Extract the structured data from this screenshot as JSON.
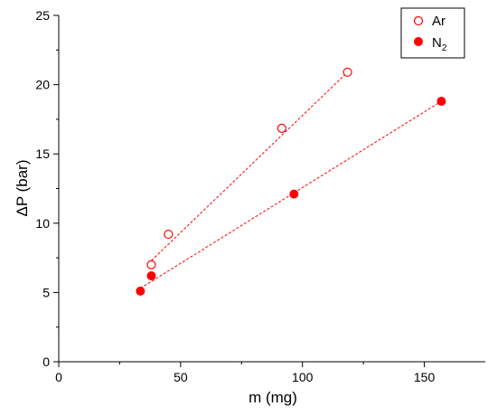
{
  "chart_data": {
    "type": "scatter",
    "xlabel": "m (mg)",
    "ylabel": "ΔP (bar)",
    "xlim": [
      0,
      175
    ],
    "ylim": [
      0,
      25
    ],
    "x_ticks": [
      0,
      50,
      100,
      150
    ],
    "y_ticks": [
      0,
      5,
      10,
      15,
      20,
      25
    ],
    "grid": false,
    "legend_position": "top-right",
    "series": [
      {
        "name": "Ar",
        "marker": "open-circle",
        "color": "#ff0000",
        "x": [
          38,
          45,
          91.5,
          118.5
        ],
        "y": [
          7.0,
          9.2,
          16.85,
          20.9
        ],
        "fit_line": {
          "x": [
            38,
            118.5
          ],
          "y": [
            7.3,
            20.9
          ],
          "style": "dashed"
        }
      },
      {
        "name": "N",
        "name_subscript": "2",
        "marker": "filled-circle",
        "color": "#ff0000",
        "x": [
          33.5,
          38,
          96.5,
          157
        ],
        "y": [
          5.1,
          6.2,
          12.1,
          18.8
        ],
        "fit_line": {
          "x": [
            33.5,
            157
          ],
          "y": [
            5.3,
            18.8
          ],
          "style": "dashed"
        }
      }
    ]
  }
}
